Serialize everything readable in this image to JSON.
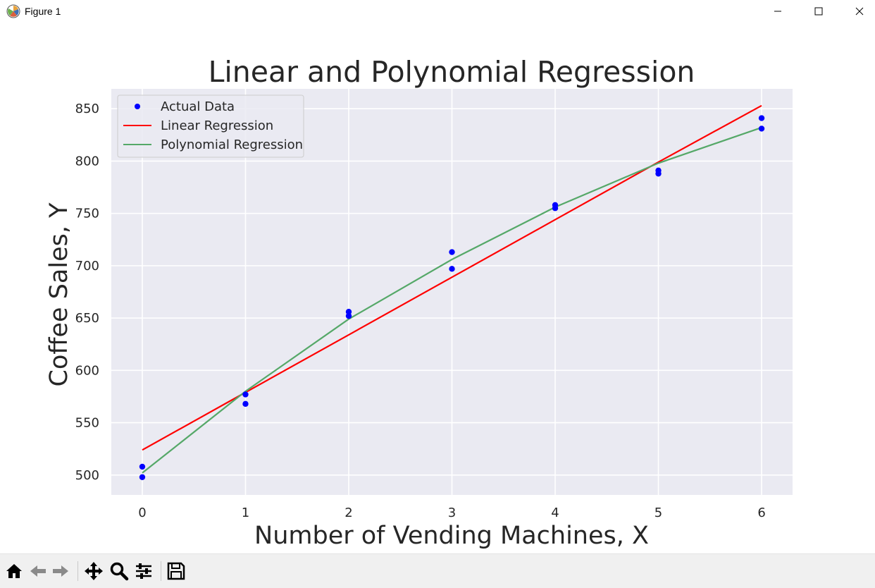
{
  "window": {
    "title": "Figure 1",
    "controls": [
      "minimize",
      "maximize",
      "close"
    ]
  },
  "toolbar": {
    "tools": [
      "home-icon",
      "back-icon",
      "forward-icon",
      "pan-icon",
      "zoom-icon",
      "configure-subplots-icon",
      "save-icon"
    ]
  },
  "colors": {
    "plot_bg": "#eaeaf2",
    "grid": "#ffffff",
    "points": "#0000ff",
    "linear": "#ff0000",
    "poly": "#55a868"
  },
  "chart_data": {
    "type": "scatter",
    "title": "Linear and Polynomial Regression",
    "xlabel": "Number of Vending Machines, X",
    "ylabel": "Coffee Sales, Y",
    "xlim": [
      -0.3,
      6.3
    ],
    "ylim": [
      481,
      869
    ],
    "xticks": [
      0,
      1,
      2,
      3,
      4,
      5,
      6
    ],
    "yticks": [
      500,
      550,
      600,
      650,
      700,
      750,
      800,
      850
    ],
    "grid": true,
    "legend_position": "top-left",
    "legend": [
      "Actual Data",
      "Linear Regression",
      "Polynomial Regression"
    ],
    "series": [
      {
        "name": "Actual Data",
        "kind": "scatter",
        "x": [
          0,
          0,
          1,
          1,
          2,
          2,
          3,
          3,
          4,
          4,
          5,
          5,
          6,
          6
        ],
        "y": [
          508,
          498,
          577,
          568,
          656,
          652,
          713,
          697,
          758,
          755,
          791,
          788,
          841,
          831
        ]
      },
      {
        "name": "Linear Regression",
        "kind": "line",
        "x": [
          0,
          1,
          2,
          3,
          4,
          5,
          6
        ],
        "y": [
          524,
          579,
          634,
          689,
          744,
          799,
          853
        ]
      },
      {
        "name": "Polynomial Regression",
        "kind": "line",
        "x": [
          0,
          1,
          2,
          3,
          4,
          5,
          6
        ],
        "y": [
          502,
          580,
          649,
          706,
          756,
          798,
          832
        ]
      }
    ]
  }
}
